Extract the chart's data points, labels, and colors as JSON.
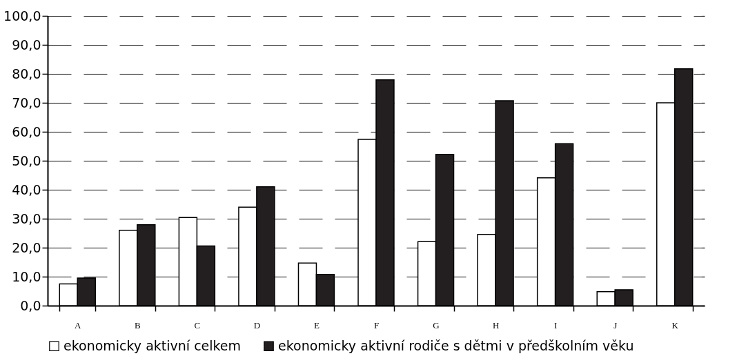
{
  "chart_data": {
    "type": "bar",
    "categories": [
      "A",
      "B",
      "C",
      "D",
      "E",
      "F",
      "G",
      "H",
      "I",
      "J",
      "K"
    ],
    "series": [
      {
        "name": "ekonomicky aktivní celkem",
        "color": "#ffffff",
        "values": [
          7.5,
          26.0,
          30.4,
          34.0,
          14.7,
          57.4,
          22.1,
          24.6,
          44.1,
          4.8,
          70.0
        ]
      },
      {
        "name": "ekonomicky aktivní rodiče s dětmi v předškolním věku",
        "color": "#231f20",
        "values": [
          9.5,
          27.9,
          20.6,
          41.0,
          10.8,
          77.9,
          52.2,
          70.7,
          55.9,
          5.5,
          81.7
        ]
      }
    ],
    "ylim": [
      0,
      100
    ],
    "yticks": [
      {
        "value": 0,
        "label": "0,0"
      },
      {
        "value": 10,
        "label": "10,0"
      },
      {
        "value": 20,
        "label": "20,0"
      },
      {
        "value": 30,
        "label": "30,0"
      },
      {
        "value": 40,
        "label": "40,0"
      },
      {
        "value": 50,
        "label": "50,0"
      },
      {
        "value": 60,
        "label": "60,0"
      },
      {
        "value": 70,
        "label": "70,0"
      },
      {
        "value": 80,
        "label": "80,0"
      },
      {
        "value": 90,
        "label": "90,0"
      },
      {
        "value": 100,
        "label": "100,0"
      }
    ],
    "grid": "y",
    "legend": "bottom"
  }
}
